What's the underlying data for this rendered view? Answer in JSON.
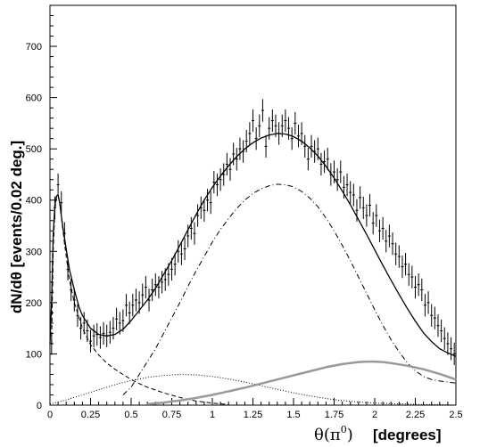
{
  "chart_data": {
    "type": "line",
    "title": "",
    "ylabel": "dN/dθ  [events/0.02 deg.]",
    "xlabel_main": "θ(π",
    "xlabel_sup": "0",
    "xlabel_close": ")",
    "xlabel_unit": "[degrees]",
    "xlim": [
      0,
      2.5
    ],
    "ylim": [
      0,
      780
    ],
    "x_ticks": [
      0,
      0.25,
      0.5,
      0.75,
      1,
      1.25,
      1.5,
      1.75,
      2,
      2.25,
      2.5
    ],
    "x_tick_labels": [
      "0",
      "0.25",
      "0.5",
      "0.75",
      "1",
      "1.25",
      "1.5",
      "1.75",
      "2",
      "2.25",
      "2.5"
    ],
    "y_ticks": [
      0,
      100,
      200,
      300,
      400,
      500,
      600,
      700
    ],
    "y_tick_labels": [
      "0",
      "100",
      "200",
      "300",
      "400",
      "500",
      "600",
      "700"
    ],
    "grid": false,
    "data_points": {
      "x": [
        0.01,
        0.03,
        0.05,
        0.07,
        0.09,
        0.11,
        0.13,
        0.15,
        0.17,
        0.19,
        0.21,
        0.23,
        0.25,
        0.27,
        0.29,
        0.31,
        0.33,
        0.35,
        0.37,
        0.39,
        0.41,
        0.43,
        0.45,
        0.47,
        0.49,
        0.51,
        0.53,
        0.55,
        0.57,
        0.59,
        0.61,
        0.63,
        0.65,
        0.67,
        0.69,
        0.71,
        0.73,
        0.75,
        0.77,
        0.79,
        0.81,
        0.83,
        0.85,
        0.87,
        0.89,
        0.91,
        0.93,
        0.95,
        0.97,
        0.99,
        1.01,
        1.03,
        1.05,
        1.07,
        1.09,
        1.11,
        1.13,
        1.15,
        1.17,
        1.19,
        1.21,
        1.23,
        1.25,
        1.27,
        1.29,
        1.31,
        1.33,
        1.35,
        1.37,
        1.39,
        1.41,
        1.43,
        1.45,
        1.47,
        1.49,
        1.51,
        1.53,
        1.55,
        1.57,
        1.59,
        1.61,
        1.63,
        1.65,
        1.67,
        1.69,
        1.71,
        1.73,
        1.75,
        1.77,
        1.79,
        1.81,
        1.83,
        1.85,
        1.87,
        1.89,
        1.91,
        1.93,
        1.95,
        1.97,
        1.99,
        2.01,
        2.03,
        2.05,
        2.07,
        2.09,
        2.11,
        2.13,
        2.15,
        2.17,
        2.19,
        2.21,
        2.23,
        2.25,
        2.27,
        2.29,
        2.31,
        2.33,
        2.35,
        2.37,
        2.39,
        2.41,
        2.43,
        2.45,
        2.47,
        2.49
      ],
      "y": [
        120,
        385,
        430,
        395,
        335,
        265,
        225,
        205,
        175,
        150,
        160,
        145,
        125,
        135,
        138,
        132,
        140,
        135,
        142,
        150,
        168,
        160,
        165,
        195,
        180,
        195,
        205,
        200,
        215,
        230,
        205,
        225,
        235,
        230,
        240,
        245,
        255,
        265,
        275,
        300,
        295,
        305,
        330,
        345,
        335,
        370,
        385,
        380,
        400,
        395,
        435,
        430,
        440,
        450,
        470,
        460,
        490,
        480,
        500,
        495,
        515,
        530,
        555,
        520,
        545,
        575,
        505,
        540,
        555,
        545,
        530,
        545,
        555,
        540,
        520,
        550,
        525,
        530,
        505,
        480,
        505,
        495,
        500,
        470,
        475,
        480,
        450,
        455,
        440,
        455,
        425,
        430,
        415,
        410,
        380,
        405,
        385,
        370,
        390,
        355,
        370,
        340,
        345,
        320,
        330,
        315,
        295,
        290,
        270,
        275,
        255,
        250,
        230,
        235,
        225,
        195,
        200,
        175,
        170,
        155,
        145,
        130,
        120,
        110,
        100
      ],
      "error": 22
    },
    "series": [
      {
        "name": "",
        "style": "solid",
        "color": "#000000",
        "x": [
          0,
          0.01,
          0.02,
          0.03,
          0.04,
          0.05,
          0.06,
          0.07,
          0.08,
          0.1,
          0.12,
          0.15,
          0.18,
          0.2,
          0.25,
          0.3,
          0.35,
          0.4,
          0.45,
          0.5,
          0.55,
          0.6,
          0.65,
          0.7,
          0.75,
          0.8,
          0.85,
          0.9,
          0.95,
          1,
          1.05,
          1.1,
          1.15,
          1.2,
          1.25,
          1.3,
          1.35,
          1.4,
          1.45,
          1.5,
          1.55,
          1.6,
          1.65,
          1.7,
          1.75,
          1.8,
          1.85,
          1.9,
          1.95,
          2,
          2.05,
          2.1,
          2.15,
          2.2,
          2.25,
          2.3,
          2.35,
          2.4,
          2.45,
          2.5
        ],
        "y": [
          120,
          200,
          330,
          390,
          408,
          410,
          395,
          370,
          345,
          305,
          265,
          225,
          190,
          175,
          150,
          138,
          135,
          138,
          148,
          165,
          185,
          205,
          228,
          255,
          282,
          312,
          342,
          372,
          400,
          425,
          447,
          467,
          485,
          500,
          512,
          521,
          527,
          530,
          529,
          524,
          515,
          502,
          486,
          466,
          443,
          418,
          391,
          362,
          333,
          303,
          273,
          244,
          216,
          189,
          164,
          141,
          124,
          110,
          102,
          95
        ]
      },
      {
        "name": "",
        "style": "dashdot",
        "color": "#000000",
        "x": [
          0.45,
          0.5,
          0.55,
          0.6,
          0.65,
          0.7,
          0.75,
          0.8,
          0.85,
          0.9,
          0.95,
          1,
          1.05,
          1.1,
          1.15,
          1.2,
          1.25,
          1.3,
          1.35,
          1.4,
          1.45,
          1.5,
          1.55,
          1.6,
          1.65,
          1.7,
          1.75,
          1.8,
          1.85,
          1.9,
          1.95,
          2,
          2.05,
          2.1,
          2.15,
          2.2,
          2.25,
          2.3,
          2.35,
          2.4,
          2.45,
          2.5
        ],
        "y": [
          20,
          35,
          60,
          85,
          110,
          140,
          170,
          200,
          232,
          262,
          290,
          318,
          343,
          364,
          384,
          400,
          413,
          422,
          428,
          431,
          430,
          426,
          417,
          404,
          387,
          365,
          340,
          312,
          282,
          250,
          218,
          186,
          156,
          128,
          104,
          83,
          67,
          56,
          50,
          47,
          45,
          43
        ]
      },
      {
        "name": "",
        "style": "dashed",
        "color": "#000000",
        "x": [
          0.01,
          0.02,
          0.03,
          0.04,
          0.05,
          0.06,
          0.08,
          0.1,
          0.12,
          0.15,
          0.2,
          0.25,
          0.3,
          0.35,
          0.4,
          0.45,
          0.5,
          0.55,
          0.6,
          0.7,
          0.8,
          0.9,
          1.0,
          1.1
        ],
        "y": [
          120,
          300,
          380,
          405,
          408,
          395,
          340,
          290,
          245,
          200,
          150,
          118,
          98,
          82,
          70,
          60,
          50,
          42,
          35,
          24,
          15,
          8,
          4,
          1
        ]
      },
      {
        "name": "",
        "style": "dotted",
        "color": "#000000",
        "x": [
          0,
          0.1,
          0.2,
          0.3,
          0.4,
          0.5,
          0.6,
          0.7,
          0.8,
          0.9,
          1.0,
          1.1,
          1.2,
          1.3,
          1.4,
          1.5,
          1.6,
          1.7,
          1.8,
          1.9,
          2.0,
          2.1,
          2.2,
          2.3,
          2.4,
          2.5
        ],
        "y": [
          2,
          10,
          20,
          30,
          40,
          48,
          54,
          58,
          60,
          59,
          56,
          51,
          45,
          38,
          31,
          24,
          18,
          13,
          9,
          6,
          4,
          3,
          2,
          1,
          1,
          0
        ]
      },
      {
        "name": "",
        "style": "solid-gray",
        "color": "#999999",
        "x": [
          0.6,
          0.7,
          0.8,
          0.9,
          1.0,
          1.1,
          1.2,
          1.3,
          1.4,
          1.5,
          1.6,
          1.7,
          1.8,
          1.9,
          1.95,
          2.0,
          2.05,
          2.1,
          2.2,
          2.3,
          2.4,
          2.5
        ],
        "y": [
          2,
          5,
          9,
          14,
          20,
          27,
          34,
          42,
          50,
          58,
          66,
          74,
          80,
          84,
          85,
          85,
          84,
          82,
          77,
          70,
          61,
          50
        ]
      }
    ]
  }
}
